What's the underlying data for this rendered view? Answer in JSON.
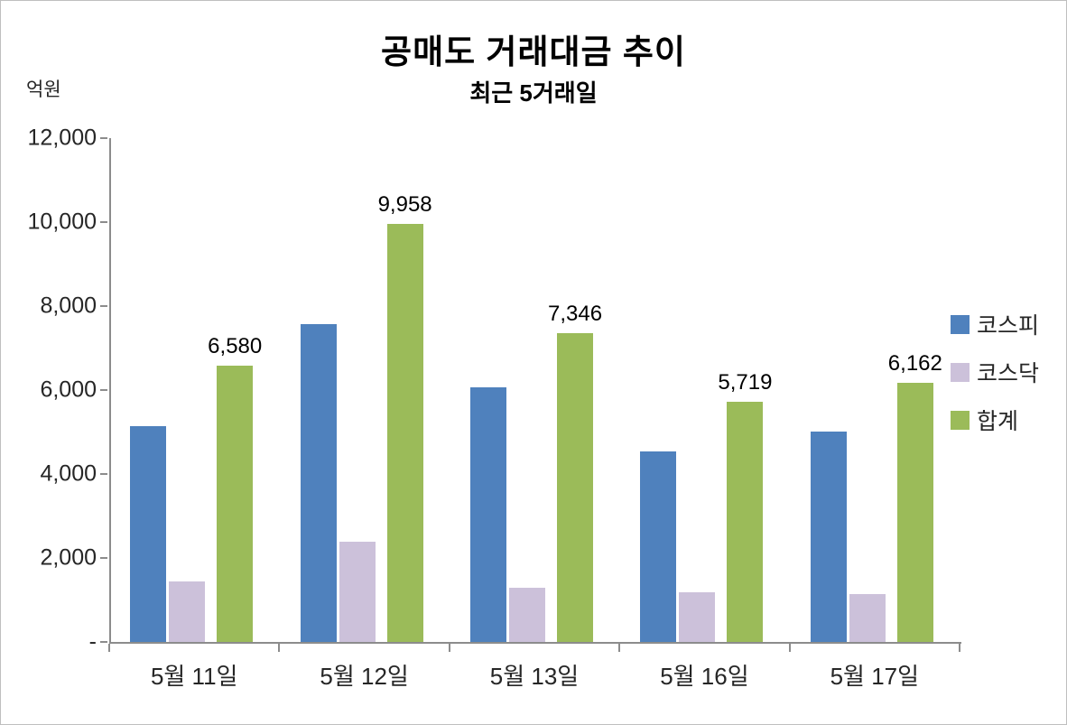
{
  "chart_data": {
    "type": "bar",
    "title": "공매도 거래대금 추이",
    "subtitle": "최근 5거래일",
    "unit_label": "억원",
    "categories": [
      "5월 11일",
      "5월 12일",
      "5월 13일",
      "5월 16일",
      "5월 17일"
    ],
    "series": [
      {
        "id": "kospi",
        "name": "코스피",
        "color": "#4F81BD",
        "show_labels": false,
        "values": [
          5130,
          7570,
          6060,
          4540,
          5020
        ]
      },
      {
        "id": "kosdaq",
        "name": "코스닥",
        "color": "#CCC1DA",
        "show_labels": false,
        "values": [
          1450,
          2390,
          1280,
          1180,
          1140
        ]
      },
      {
        "id": "total",
        "name": "합계",
        "color": "#9BBB59",
        "show_labels": true,
        "values": [
          6580,
          9958,
          7346,
          5719,
          6162
        ]
      }
    ],
    "ylim": [
      0,
      12000
    ],
    "yticks": [
      "12,000",
      "10,000",
      "8,000",
      "6,000",
      "4,000",
      "2,000",
      "-"
    ],
    "grid": false,
    "legend_position": "right"
  }
}
